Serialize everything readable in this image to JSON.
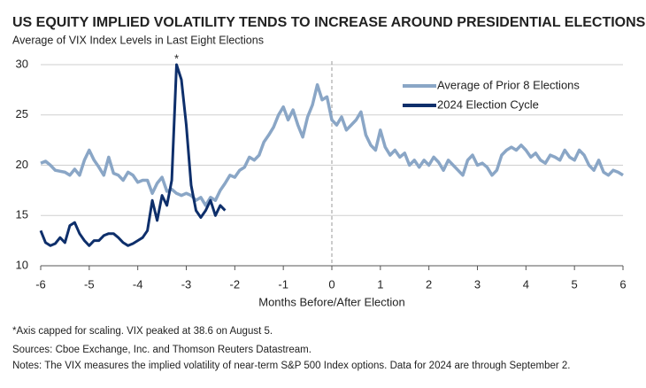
{
  "chart_data": {
    "type": "line",
    "title": "US EQUITY IMPLIED VOLATILITY TENDS TO INCREASE AROUND PRESIDENTIAL ELECTIONS",
    "subtitle": "Average of VIX Index Levels in Last Eight Elections",
    "xlabel": "Months Before/After Election",
    "annotation": "*",
    "notes": [
      "*Axis capped for scaling. VIX peaked at 38.6 on August 5.",
      "Sources: Cboe Exchange, Inc. and Thomson Reuters Datastream.",
      "Notes: The VIX measures the implied volatility of near-term S&P 500 Index options. Data for 2024 are through September 2."
    ],
    "xlim": [
      -6,
      6
    ],
    "xticks": [
      -6,
      -5,
      -4,
      -3,
      -2,
      -1,
      0,
      1,
      2,
      3,
      4,
      5,
      6
    ],
    "ylim": [
      10,
      30
    ],
    "yticks": [
      10,
      15,
      20,
      25,
      30
    ],
    "grid": true,
    "vline": 0,
    "legend": "upper right",
    "series": [
      {
        "name": "Average of Prior 8 Elections",
        "color": "#8aa6c6",
        "x": [
          -6,
          -5.9,
          -5.8,
          -5.7,
          -5.6,
          -5.5,
          -5.4,
          -5.3,
          -5.2,
          -5.1,
          -5,
          -4.9,
          -4.8,
          -4.7,
          -4.6,
          -4.5,
          -4.4,
          -4.3,
          -4.2,
          -4.1,
          -4,
          -3.9,
          -3.8,
          -3.7,
          -3.6,
          -3.5,
          -3.4,
          -3.3,
          -3.2,
          -3.1,
          -3,
          -2.9,
          -2.8,
          -2.7,
          -2.6,
          -2.5,
          -2.4,
          -2.3,
          -2.2,
          -2.1,
          -2,
          -1.9,
          -1.8,
          -1.7,
          -1.6,
          -1.5,
          -1.4,
          -1.3,
          -1.2,
          -1.1,
          -1,
          -0.9,
          -0.8,
          -0.7,
          -0.6,
          -0.5,
          -0.4,
          -0.3,
          -0.2,
          -0.1,
          0,
          0.1,
          0.2,
          0.3,
          0.4,
          0.5,
          0.6,
          0.7,
          0.8,
          0.9,
          1,
          1.1,
          1.2,
          1.3,
          1.4,
          1.5,
          1.6,
          1.7,
          1.8,
          1.9,
          2,
          2.1,
          2.2,
          2.3,
          2.4,
          2.5,
          2.6,
          2.7,
          2.8,
          2.9,
          3,
          3.1,
          3.2,
          3.3,
          3.4,
          3.5,
          3.6,
          3.7,
          3.8,
          3.9,
          4,
          4.1,
          4.2,
          4.3,
          4.4,
          4.5,
          4.6,
          4.7,
          4.8,
          4.9,
          5,
          5.1,
          5.2,
          5.3,
          5.4,
          5.5,
          5.6,
          5.7,
          5.8,
          5.9,
          6
        ],
        "values": [
          20.2,
          20.4,
          20.0,
          19.5,
          19.4,
          19.3,
          19.0,
          19.6,
          19.0,
          20.5,
          21.5,
          20.5,
          19.8,
          19.0,
          20.8,
          19.2,
          19.0,
          18.5,
          19.3,
          19.0,
          18.3,
          18.5,
          18.5,
          17.2,
          18.2,
          18.8,
          17.4,
          17.6,
          17.2,
          17.0,
          17.2,
          17.0,
          16.5,
          16.8,
          16.0,
          16.8,
          16.5,
          17.5,
          18.2,
          19.0,
          18.8,
          19.5,
          19.8,
          20.8,
          20.5,
          21.0,
          22.3,
          23.0,
          23.8,
          25.0,
          25.8,
          24.5,
          25.5,
          24.0,
          22.8,
          24.8,
          26.0,
          28.0,
          26.5,
          26.8,
          24.5,
          24.0,
          24.8,
          23.5,
          24.0,
          24.5,
          25.3,
          23.0,
          22.0,
          21.5,
          23.5,
          21.8,
          21.0,
          21.5,
          20.8,
          21.2,
          20.0,
          20.5,
          19.8,
          20.5,
          20.0,
          20.8,
          20.3,
          19.5,
          20.5,
          20.0,
          19.5,
          19.0,
          20.5,
          21.0,
          20.0,
          20.2,
          19.8,
          19.0,
          19.5,
          21.0,
          21.5,
          21.8,
          21.5,
          22.0,
          21.5,
          20.8,
          21.2,
          20.5,
          20.2,
          21.0,
          20.8,
          20.5,
          21.5,
          20.8,
          20.5,
          21.5,
          21.0,
          20.0,
          19.5,
          20.5,
          19.3,
          19.0,
          19.5,
          19.3,
          19.0
        ]
      },
      {
        "name": "2024 Election Cycle",
        "color": "#0e2f6b",
        "x": [
          -6,
          -5.9,
          -5.8,
          -5.7,
          -5.6,
          -5.5,
          -5.4,
          -5.3,
          -5.2,
          -5.1,
          -5,
          -4.9,
          -4.8,
          -4.7,
          -4.6,
          -4.5,
          -4.4,
          -4.3,
          -4.2,
          -4.1,
          -4,
          -3.9,
          -3.8,
          -3.7,
          -3.6,
          -3.5,
          -3.4,
          -3.3,
          -3.2,
          -3.1,
          -3,
          -2.9,
          -2.8,
          -2.7,
          -2.6,
          -2.5,
          -2.4,
          -2.3,
          -2.2
        ],
        "values": [
          13.5,
          12.3,
          12.0,
          12.2,
          12.8,
          12.3,
          14.0,
          14.3,
          13.2,
          12.5,
          12.0,
          12.5,
          12.5,
          13.0,
          13.2,
          13.2,
          12.8,
          12.3,
          12.0,
          12.2,
          12.5,
          12.8,
          13.5,
          16.5,
          14.5,
          17.0,
          16.0,
          18.5,
          30.0,
          28.5,
          24.0,
          18.0,
          15.5,
          14.8,
          15.5,
          16.5,
          15.0,
          16.0,
          15.5
        ]
      }
    ]
  }
}
